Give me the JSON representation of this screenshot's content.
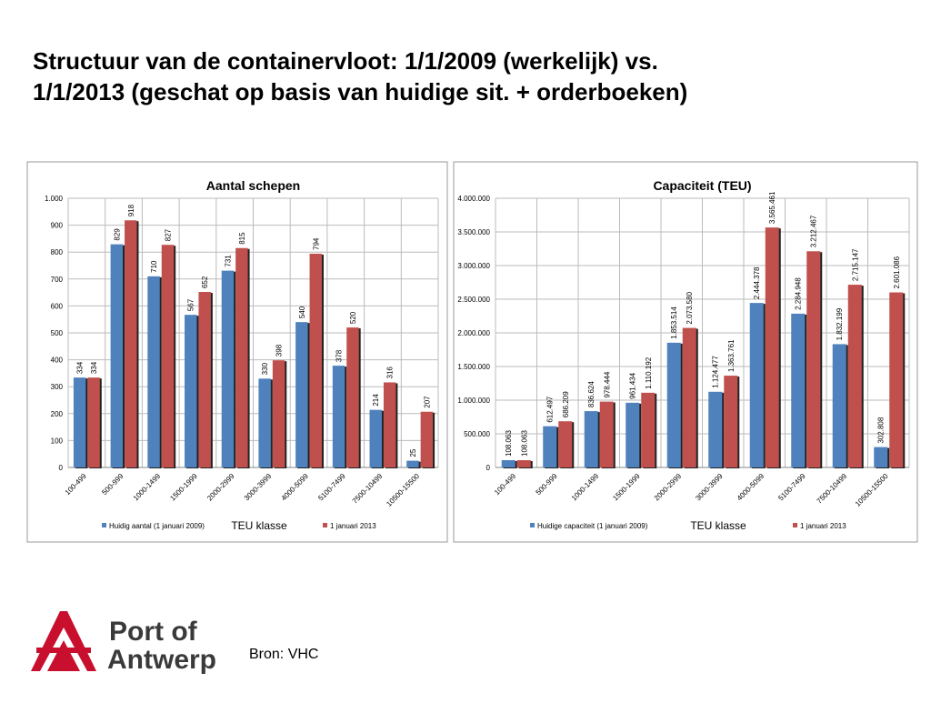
{
  "title": [
    "Structuur van de containervloot: 1/1/2009 (werkelijk) vs.",
    "1/1/2013 (geschat op basis van huidige sit. + orderboeken)"
  ],
  "source": "Bron: VHC",
  "logo": [
    "Port of",
    "Antwerp"
  ],
  "chart_data": [
    {
      "type": "bar",
      "title": "Aantal schepen",
      "x_label": "TEU klasse",
      "categories": [
        "100-499",
        "500-999",
        "1000-1499",
        "1500-1999",
        "2000-2999",
        "3000-3999",
        "4000-5099",
        "5100-7499",
        "7500-10499",
        "10500-15500"
      ],
      "series": [
        {
          "name": "Huidig aantal (1 januari 2009)",
          "color": "#4f81bd",
          "values": [
            334,
            829,
            710,
            567,
            731,
            330,
            540,
            378,
            214,
            25
          ]
        },
        {
          "name": "1 januari 2013",
          "color": "#c0504d",
          "values": [
            334,
            918,
            827,
            652,
            815,
            398,
            794,
            520,
            316,
            207
          ]
        }
      ],
      "ylim": [
        0,
        1000
      ],
      "yticks": [
        0,
        100,
        200,
        300,
        400,
        500,
        600,
        700,
        800,
        900,
        {
          "value": 1000,
          "label": "1.000"
        }
      ],
      "grid": true
    },
    {
      "type": "bar",
      "title": "Capaciteit (TEU)",
      "x_label": "TEU klasse",
      "categories": [
        "100-499",
        "500-999",
        "1000-1499",
        "1500-1999",
        "2000-2999",
        "3000-3999",
        "4000-5099",
        "5100-7499",
        "7500-10499",
        "10500-15500"
      ],
      "series": [
        {
          "name": "Huidige capaciteit (1 januari 2009)",
          "color": "#4f81bd",
          "values": [
            108063,
            612497,
            836624,
            961434,
            1853514,
            1124477,
            2444378,
            2284948,
            1832199,
            302808
          ],
          "value_labels": [
            "108.063",
            "612.497",
            "836.624",
            "961.434",
            "1.853.514",
            "1.124.477",
            "2.444.378",
            "2.284.948",
            "1.832.199",
            "302.808"
          ]
        },
        {
          "name": "1 januari 2013",
          "color": "#c0504d",
          "values": [
            108063,
            686209,
            978444,
            1110192,
            2073580,
            1363761,
            3565461,
            3212467,
            2715147,
            2601086
          ],
          "value_labels": [
            "108.063",
            "686.209",
            "978.444",
            "1.110.192",
            "2.073.580",
            "1.363.761",
            "3.565.461",
            "3.212.467",
            "2.715.147",
            "2.601.086"
          ]
        }
      ],
      "ylim": [
        0,
        4000000
      ],
      "yticks": [
        0,
        {
          "value": 500000,
          "label": "500.000"
        },
        {
          "value": 1000000,
          "label": "1.000.000"
        },
        {
          "value": 1500000,
          "label": "1.500.000"
        },
        {
          "value": 2000000,
          "label": "2.000.000"
        },
        {
          "value": 2500000,
          "label": "2.500.000"
        },
        {
          "value": 3000000,
          "label": "3.000.000"
        },
        {
          "value": 3500000,
          "label": "3.500.000"
        },
        {
          "value": 4000000,
          "label": "4.000.000"
        }
      ],
      "grid": true
    }
  ]
}
